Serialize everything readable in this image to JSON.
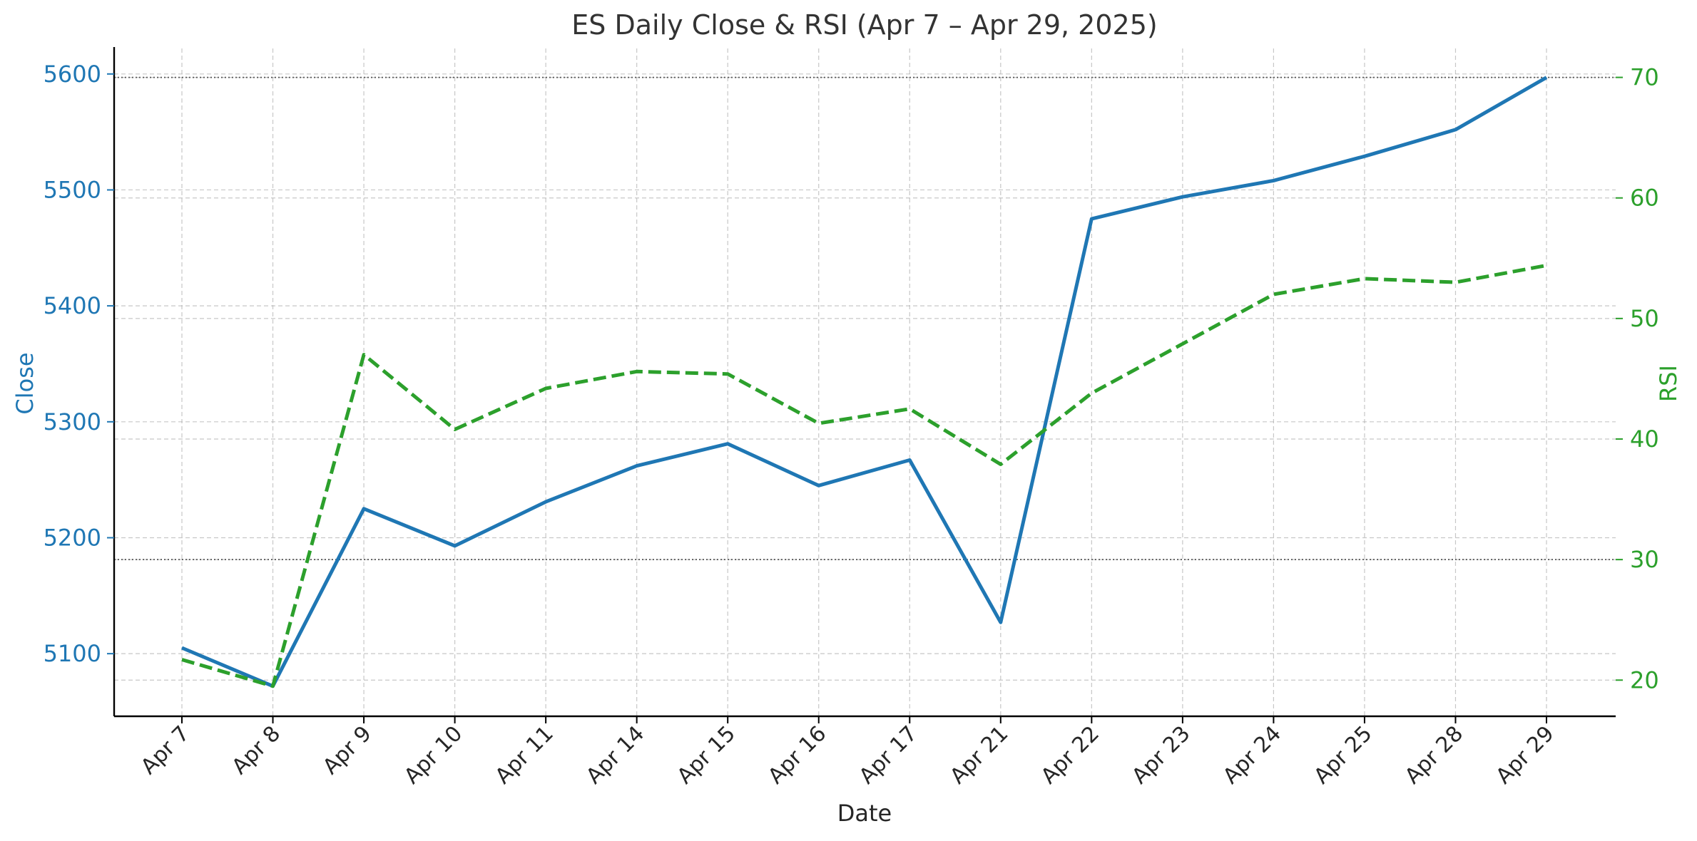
{
  "chart_data": {
    "type": "line",
    "title": "ES Daily Close & RSI (Apr 7 – Apr 29, 2025)",
    "xlabel": "Date",
    "ylabel_left": "Close",
    "ylabel_right": "RSI",
    "categories": [
      "Apr 7",
      "Apr 8",
      "Apr 9",
      "Apr 10",
      "Apr 11",
      "Apr 14",
      "Apr 15",
      "Apr 16",
      "Apr 17",
      "Apr 21",
      "Apr 22",
      "Apr 23",
      "Apr 24",
      "Apr 25",
      "Apr 28",
      "Apr 29"
    ],
    "series": [
      {
        "name": "Close",
        "axis": "left",
        "style": "solid",
        "color": "#1f77b4",
        "values": [
          5105,
          5072,
          5225,
          5193,
          5231,
          5262,
          5281,
          5245,
          5267,
          5127,
          5475,
          5494,
          5508,
          5529,
          5552,
          5597
        ]
      },
      {
        "name": "RSI",
        "axis": "right",
        "style": "dashed",
        "color": "#2ca02c",
        "values": [
          21.7,
          19.5,
          47.0,
          40.8,
          44.2,
          45.6,
          45.4,
          41.3,
          42.5,
          37.9,
          43.8,
          47.9,
          52.0,
          53.3,
          53.0,
          54.4
        ]
      }
    ],
    "ylim_left": [
      5046,
      5622
    ],
    "yticks_left": [
      5100,
      5200,
      5300,
      5400,
      5500,
      5600
    ],
    "ylim_right": [
      17.0,
      72.4
    ],
    "yticks_right": [
      20,
      30,
      40,
      50,
      60,
      70
    ],
    "reference_lines_right": [
      30,
      70
    ],
    "grid": true,
    "axis_color_left": "#1f77b4",
    "axis_color_right": "#2ca02c"
  }
}
